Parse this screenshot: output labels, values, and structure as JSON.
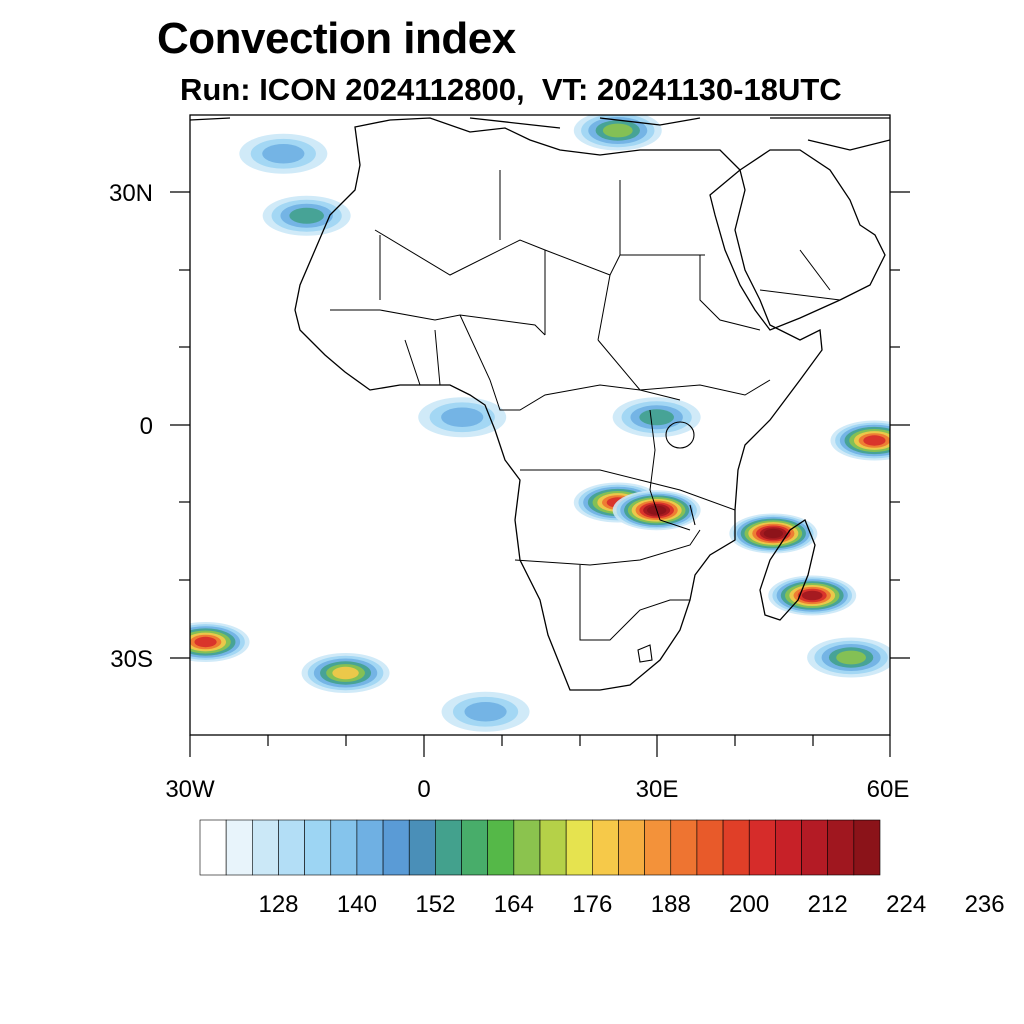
{
  "title": "Convection index",
  "subtitle": "Run: ICON 2024112800,  VT: 20241130-18UTC",
  "axes": {
    "lon_labels": [
      "30W",
      "0",
      "30E",
      "60E"
    ],
    "lat_labels": [
      "30N",
      "0",
      "30S"
    ]
  },
  "colorbar": {
    "tick_labels": [
      "128",
      "140",
      "152",
      "164",
      "176",
      "188",
      "200",
      "212",
      "224",
      "236"
    ],
    "colors": [
      "#ffffff",
      "#e8f4fb",
      "#cbe8f7",
      "#b3def6",
      "#9dd5f3",
      "#85c4ec",
      "#6fb0e3",
      "#5a9bd6",
      "#4a8fb8",
      "#43a18d",
      "#48ad6a",
      "#55b848",
      "#8bc34e",
      "#b5d148",
      "#e6e34f",
      "#f6c949",
      "#f5ae42",
      "#f3923a",
      "#ee7431",
      "#e85a2a",
      "#e03f28",
      "#d62c2a",
      "#c72128",
      "#b41b25",
      "#a0171f",
      "#8b1319"
    ]
  },
  "chart_data": {
    "type": "heatmap",
    "title": "Convection index",
    "subtitle": "Run: ICON 2024112800,  VT: 20241130-18UTC",
    "lon_range": [
      -30,
      60
    ],
    "lat_range": [
      -40,
      40
    ],
    "colorbar_ticks": [
      128,
      140,
      152,
      164,
      176,
      188,
      200,
      212,
      224,
      236
    ],
    "regions": [
      {
        "lon": 45,
        "lat": -14,
        "max_value": 224
      },
      {
        "lon": 50,
        "lat": -22,
        "max_value": 212
      },
      {
        "lon": 25,
        "lat": -10,
        "max_value": 200
      },
      {
        "lon": 30,
        "lat": -11,
        "max_value": 224
      },
      {
        "lon": -28,
        "lat": -28,
        "max_value": 200
      },
      {
        "lon": -10,
        "lat": -32,
        "max_value": 176
      },
      {
        "lon": 58,
        "lat": -2,
        "max_value": 200
      },
      {
        "lon": 25,
        "lat": 38,
        "max_value": 164
      },
      {
        "lon": -15,
        "lat": 27,
        "max_value": 152
      },
      {
        "lon": -18,
        "lat": 35,
        "max_value": 140
      },
      {
        "lon": 5,
        "lat": 1,
        "max_value": 140
      },
      {
        "lon": 30,
        "lat": 1,
        "max_value": 152
      },
      {
        "lon": 8,
        "lat": -37,
        "max_value": 140
      },
      {
        "lon": 55,
        "lat": -30,
        "max_value": 164
      }
    ]
  }
}
